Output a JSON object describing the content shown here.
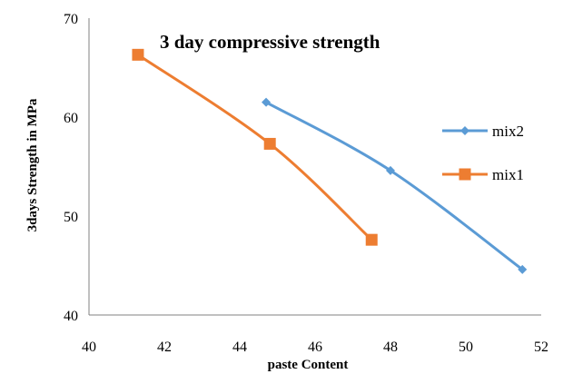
{
  "chart_data": {
    "type": "line",
    "title": "3 day compressive strength",
    "xlabel": "paste Content",
    "ylabel": "3days Strength in MPa",
    "xlim": [
      40,
      52
    ],
    "ylim": [
      40,
      70
    ],
    "x_ticks": [
      40,
      42,
      44,
      46,
      48,
      50,
      52
    ],
    "y_ticks": [
      40,
      50,
      60,
      70
    ],
    "grid": false,
    "legend_position": "right",
    "series": [
      {
        "name": "mix2",
        "color": "#5B9BD5",
        "marker": "diamond",
        "smooth": true,
        "x": [
          44.7,
          48.0,
          51.5
        ],
        "y": [
          61.5,
          54.6,
          44.6
        ]
      },
      {
        "name": "mix1",
        "color": "#ED7D31",
        "marker": "square",
        "smooth": true,
        "x": [
          41.3,
          44.8,
          47.5
        ],
        "y": [
          66.3,
          57.3,
          47.6
        ]
      }
    ]
  }
}
